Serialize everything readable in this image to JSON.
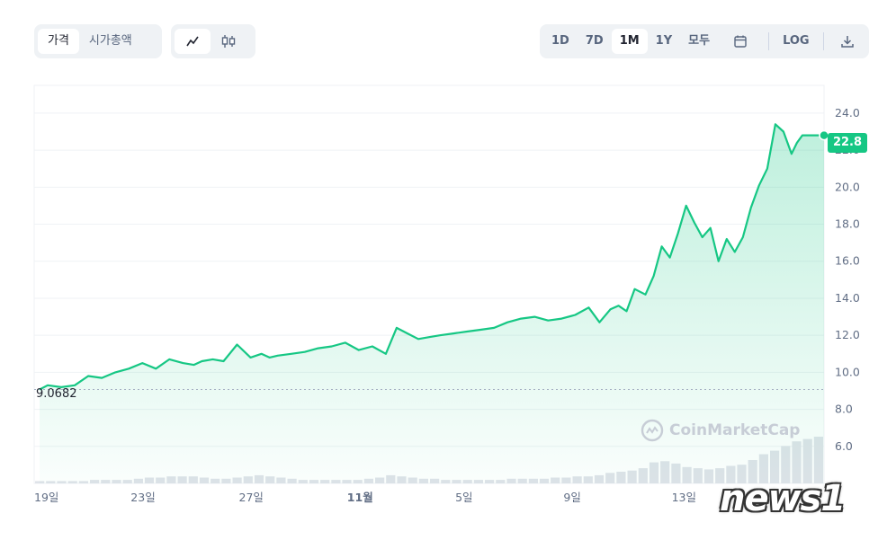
{
  "tabs": {
    "price": "가격",
    "market_cap": "시가총액"
  },
  "chart_type_icons": [
    "line-chart-icon",
    "candlestick-icon"
  ],
  "ranges": [
    "1D",
    "7D",
    "1M",
    "1Y",
    "모두"
  ],
  "active_range": "1M",
  "log_label": "LOG",
  "watermark": "CoinMarketCap",
  "source_logo": "news1",
  "start_value_label": "9.0682",
  "last_value_label": "22.8",
  "colors": {
    "line": "#16c784",
    "accent": "#16c784",
    "volume": "#dfe3e9"
  },
  "chart_data": {
    "type": "area",
    "title": "",
    "xlabel": "",
    "ylabel": "",
    "ylim": [
      4.0,
      25.5
    ],
    "yticks": [
      "24.0",
      "22.0",
      "20.0",
      "18.0",
      "16.0",
      "14.0",
      "12.0",
      "10.0",
      "8.0",
      "6.0"
    ],
    "xticks": [
      "19일",
      "23일",
      "27일",
      "11월",
      "5일",
      "9일",
      "13일"
    ],
    "xtick_days": [
      0,
      4,
      8,
      12,
      16,
      20,
      24
    ],
    "xlim_days": [
      0,
      29.2
    ],
    "grid": true,
    "series": [
      {
        "values_x_days": [
          0.2,
          0.5,
          1.0,
          1.5,
          2.0,
          2.5,
          3.0,
          3.5,
          4.0,
          4.5,
          5.0,
          5.5,
          5.9,
          6.2,
          6.6,
          7.0,
          7.5,
          8.0,
          8.4,
          8.7,
          9.0,
          9.5,
          10.0,
          10.5,
          11.0,
          11.5,
          12.0,
          12.5,
          13.0,
          13.4,
          13.8,
          14.2,
          14.6,
          15.0,
          15.5,
          16.0,
          16.5,
          17.0,
          17.5,
          18.0,
          18.5,
          19.0,
          19.5,
          20.0,
          20.5,
          20.9,
          21.3,
          21.6,
          21.9,
          22.2,
          22.6,
          22.9,
          23.2,
          23.5,
          23.8,
          24.1,
          24.4,
          24.7,
          25.0,
          25.3,
          25.6,
          25.9,
          26.2,
          26.5,
          26.8,
          27.1,
          27.4,
          27.7,
          28.0,
          28.2,
          28.4,
          28.6,
          28.8,
          29.0,
          29.2
        ],
        "values": [
          9.07,
          9.3,
          9.2,
          9.3,
          9.8,
          9.7,
          10.0,
          10.2,
          10.5,
          10.2,
          10.7,
          10.5,
          10.4,
          10.6,
          10.7,
          10.6,
          11.5,
          10.8,
          11.0,
          10.8,
          10.9,
          11.0,
          11.1,
          11.3,
          11.4,
          11.6,
          11.2,
          11.4,
          11.0,
          12.4,
          12.1,
          11.8,
          11.9,
          12.0,
          12.1,
          12.2,
          12.3,
          12.4,
          12.7,
          12.9,
          13.0,
          12.8,
          12.9,
          13.1,
          13.5,
          12.7,
          13.4,
          13.6,
          13.3,
          14.5,
          14.2,
          15.2,
          16.8,
          16.2,
          17.5,
          19.0,
          18.1,
          17.3,
          17.8,
          16.0,
          17.2,
          16.5,
          17.3,
          18.9,
          20.1,
          21.0,
          23.4,
          23.0,
          21.8,
          22.4,
          22.8,
          22.8,
          22.8,
          22.8,
          22.8
        ]
      }
    ],
    "volume": [
      2,
      2,
      2,
      2,
      2,
      3,
      3,
      3,
      3,
      4,
      5,
      5,
      6,
      6,
      6,
      5,
      4,
      4,
      5,
      6,
      7,
      6,
      5,
      4,
      3,
      3,
      3,
      3,
      3,
      3,
      4,
      5,
      7,
      6,
      5,
      4,
      4,
      3,
      3,
      3,
      3,
      3,
      3,
      4,
      4,
      4,
      4,
      5,
      5,
      6,
      6,
      7,
      9,
      10,
      11,
      13,
      18,
      19,
      17,
      14,
      13,
      12,
      13,
      15,
      16,
      20,
      25,
      28,
      32,
      36,
      38,
      40
    ]
  }
}
